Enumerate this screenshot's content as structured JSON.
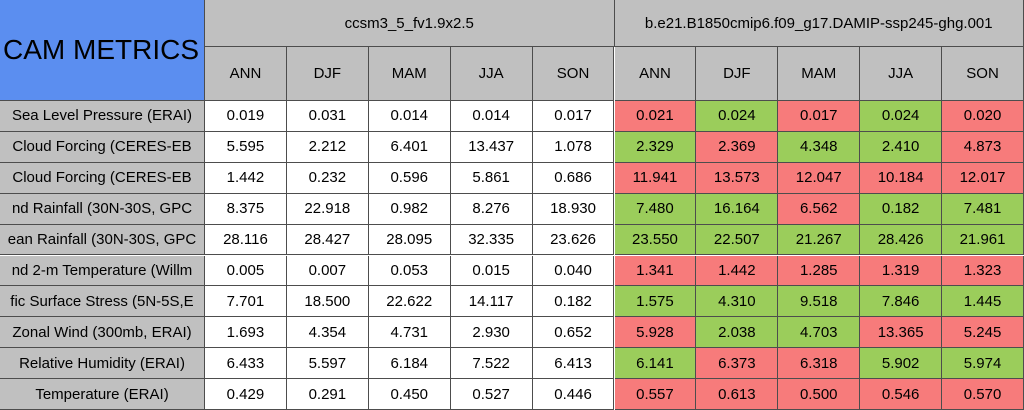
{
  "title": "CAM METRICS",
  "groups": [
    {
      "name": "ccsm3_5_fv1.9x2.5",
      "columns": [
        "ANN",
        "DJF",
        "MAM",
        "JJA",
        "SON"
      ]
    },
    {
      "name": "b.e21.B1850cmip6.f09_g17.DAMIP-ssp245-ghg.001",
      "columns": [
        "ANN",
        "DJF",
        "MAM",
        "JJA",
        "SON"
      ]
    }
  ],
  "colors": {
    "red": "#f77b7b",
    "green": "#9bcd5b"
  },
  "rows": [
    {
      "label": "Sea Level Pressure (ERAI)",
      "values": [
        "0.019",
        "0.031",
        "0.014",
        "0.014",
        "0.017",
        "0.021",
        "0.024",
        "0.017",
        "0.024",
        "0.020"
      ],
      "colors": [
        "red",
        "green",
        "red",
        "green",
        "red"
      ]
    },
    {
      "label": "Cloud Forcing (CERES-EB",
      "values": [
        "5.595",
        "2.212",
        "6.401",
        "13.437",
        "1.078",
        "2.329",
        "2.369",
        "4.348",
        "2.410",
        "4.873"
      ],
      "colors": [
        "green",
        "red",
        "green",
        "green",
        "red"
      ]
    },
    {
      "label": "Cloud Forcing (CERES-EB",
      "values": [
        "1.442",
        "0.232",
        "0.596",
        "5.861",
        "0.686",
        "11.941",
        "13.573",
        "12.047",
        "10.184",
        "12.017"
      ],
      "colors": [
        "red",
        "red",
        "red",
        "red",
        "red"
      ]
    },
    {
      "label": "nd Rainfall (30N-30S, GPC",
      "values": [
        "8.375",
        "22.918",
        "0.982",
        "8.276",
        "18.930",
        "7.480",
        "16.164",
        "6.562",
        "0.182",
        "7.481"
      ],
      "colors": [
        "green",
        "green",
        "red",
        "green",
        "green"
      ]
    },
    {
      "label": "ean Rainfall (30N-30S, GPC",
      "values": [
        "28.116",
        "28.427",
        "28.095",
        "32.335",
        "23.626",
        "23.550",
        "22.507",
        "21.267",
        "28.426",
        "21.961"
      ],
      "colors": [
        "green",
        "green",
        "green",
        "green",
        "green"
      ]
    },
    {
      "label": "nd 2-m Temperature (Willm",
      "values": [
        "0.005",
        "0.007",
        "0.053",
        "0.015",
        "0.040",
        "1.341",
        "1.442",
        "1.285",
        "1.319",
        "1.323"
      ],
      "colors": [
        "red",
        "red",
        "red",
        "red",
        "red"
      ]
    },
    {
      "label": "fic Surface Stress (5N-5S,E",
      "values": [
        "7.701",
        "18.500",
        "22.622",
        "14.117",
        "0.182",
        "1.575",
        "4.310",
        "9.518",
        "7.846",
        "1.445"
      ],
      "colors": [
        "green",
        "green",
        "green",
        "green",
        "green"
      ]
    },
    {
      "label": "Zonal Wind (300mb, ERAI)",
      "values": [
        "1.693",
        "4.354",
        "4.731",
        "2.930",
        "0.652",
        "5.928",
        "2.038",
        "4.703",
        "13.365",
        "5.245"
      ],
      "colors": [
        "red",
        "green",
        "green",
        "red",
        "red"
      ]
    },
    {
      "label": "Relative Humidity (ERAI)",
      "values": [
        "6.433",
        "5.597",
        "6.184",
        "7.522",
        "6.413",
        "6.141",
        "6.373",
        "6.318",
        "5.902",
        "5.974"
      ],
      "colors": [
        "green",
        "red",
        "red",
        "green",
        "green"
      ]
    },
    {
      "label": "Temperature (ERAI)",
      "values": [
        "0.429",
        "0.291",
        "0.450",
        "0.527",
        "0.446",
        "0.557",
        "0.613",
        "0.500",
        "0.546",
        "0.570"
      ],
      "colors": [
        "red",
        "red",
        "red",
        "red",
        "red"
      ]
    }
  ]
}
